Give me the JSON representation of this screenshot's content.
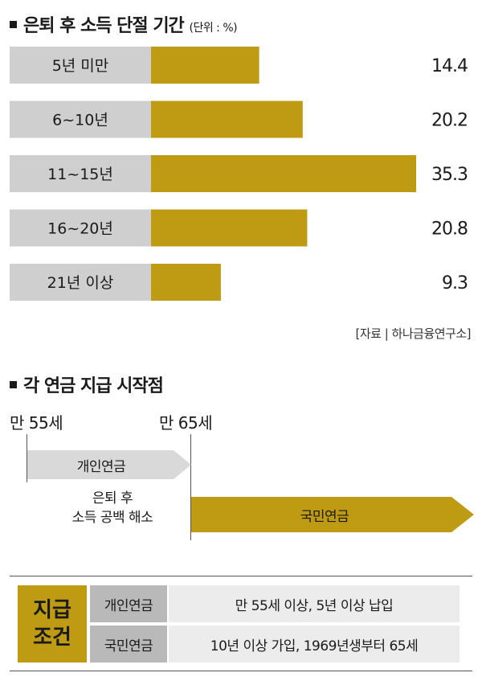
{
  "chart_title": "은퇴 후 소득 단절 기간",
  "chart_unit": "(단위 : %)",
  "chart_data": {
    "type": "bar",
    "orientation": "horizontal",
    "categories": [
      "5년 미만",
      "6~10년",
      "11~15년",
      "16~20년",
      "21년 이상"
    ],
    "values": [
      14.4,
      20.2,
      35.3,
      20.8,
      9.3
    ],
    "value_labels": [
      "14.4",
      "20.2",
      "35.3",
      "20.8",
      "9.3"
    ],
    "title": "은퇴 후 소득 단절 기간",
    "unit": "%",
    "bar_color": "#bf9b13",
    "label_bg_color": "#cfcfcf"
  },
  "source": "[자료 | 하나금융연구소]",
  "pension_title": "각 연금 지급 시작점",
  "age_start_personal": "만 55세",
  "age_start_national": "만 65세",
  "arrow_personal_label": "개인연금",
  "arrow_national_label": "국민연금",
  "gap_note_line1": "은퇴 후",
  "gap_note_line2": "소득 공백 해소",
  "conditions": {
    "title_line1": "지급",
    "title_line2": "조건",
    "rows": [
      {
        "name": "개인연금",
        "value": "만 55세 이상, 5년 이상 납입"
      },
      {
        "name": "국민연금",
        "value": "10년 이상 가입, 1969년생부터 65세"
      }
    ]
  },
  "colors": {
    "accent": "#bf9b13",
    "grey_label": "#cfcfcf",
    "grey_key": "#b9b9b9",
    "grey_value": "#ececec"
  }
}
